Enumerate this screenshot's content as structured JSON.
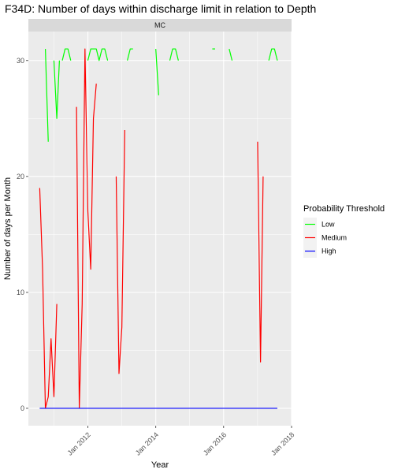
{
  "chart_data": {
    "type": "line",
    "title": "F34D: Number of days within discharge limit in relation to Depth",
    "facet_label": "MC",
    "xlabel": "Year",
    "ylabel": "Number of days per Month",
    "x_ticks": [
      "Jan 2012",
      "Jan 2014",
      "Jan 2016",
      "Jan 2018"
    ],
    "y_ticks": [
      0,
      10,
      20,
      30
    ],
    "xlim": [
      "2010-04-01",
      "2018-01-01"
    ],
    "ylim": [
      -1.5,
      32.5
    ],
    "legend": {
      "title": "Probability Threshold",
      "position": "right"
    },
    "grid": true,
    "series": [
      {
        "name": "Low",
        "color": "#00FF00",
        "segments": [
          [
            [
              "2010-10-01",
              31
            ],
            [
              "2010-11-01",
              23
            ]
          ],
          [
            [
              "2011-01-01",
              30
            ],
            [
              "2011-02-01",
              25
            ],
            [
              "2011-03-01",
              30
            ]
          ],
          [
            [
              "2011-04-01",
              30
            ],
            [
              "2011-05-01",
              31
            ],
            [
              "2011-06-01",
              31
            ],
            [
              "2011-07-01",
              30
            ]
          ],
          [
            [
              "2012-01-01",
              30
            ],
            [
              "2012-02-01",
              31
            ],
            [
              "2012-03-01",
              31
            ],
            [
              "2012-04-01",
              31
            ],
            [
              "2012-05-01",
              30
            ],
            [
              "2012-06-01",
              31
            ],
            [
              "2012-07-01",
              31
            ],
            [
              "2012-08-01",
              30
            ]
          ],
          [
            [
              "2013-03-01",
              30
            ],
            [
              "2013-04-01",
              31
            ],
            [
              "2013-05-01",
              31
            ]
          ],
          [
            [
              "2014-01-01",
              31
            ],
            [
              "2014-02-01",
              27
            ]
          ],
          [
            [
              "2014-06-01",
              30
            ],
            [
              "2014-07-01",
              31
            ],
            [
              "2014-08-01",
              31
            ],
            [
              "2014-09-01",
              30
            ]
          ],
          [
            [
              "2015-09-01",
              31
            ],
            [
              "2015-10-01",
              31
            ]
          ],
          [
            [
              "2016-03-01",
              31
            ],
            [
              "2016-04-01",
              30
            ]
          ],
          [
            [
              "2017-05-01",
              30
            ],
            [
              "2017-06-01",
              31
            ],
            [
              "2017-07-01",
              31
            ],
            [
              "2017-08-01",
              30
            ]
          ]
        ]
      },
      {
        "name": "Medium",
        "color": "#FF0000",
        "segments": [
          [
            [
              "2010-08-01",
              19
            ],
            [
              "2010-09-01",
              12
            ],
            [
              "2010-10-01",
              0
            ],
            [
              "2010-11-01",
              1
            ],
            [
              "2010-12-01",
              6
            ],
            [
              "2011-01-01",
              1
            ],
            [
              "2011-02-01",
              9
            ]
          ],
          [
            [
              "2011-09-01",
              26
            ],
            [
              "2011-10-01",
              0
            ],
            [
              "2011-11-01",
              9
            ],
            [
              "2011-12-01",
              31
            ],
            [
              "2012-01-01",
              17
            ],
            [
              "2012-02-01",
              12
            ],
            [
              "2012-03-01",
              25
            ],
            [
              "2012-04-01",
              28
            ]
          ],
          [
            [
              "2012-11-01",
              20
            ],
            [
              "2012-12-01",
              3
            ],
            [
              "2013-01-01",
              7
            ],
            [
              "2013-02-01",
              24
            ]
          ],
          [
            [
              "2017-01-01",
              23
            ],
            [
              "2017-02-01",
              4
            ],
            [
              "2017-03-01",
              20
            ]
          ]
        ]
      },
      {
        "name": "High",
        "color": "#0000FF",
        "segments": [
          [
            [
              "2010-08-01",
              0
            ],
            [
              "2017-08-01",
              0
            ]
          ]
        ]
      }
    ]
  }
}
